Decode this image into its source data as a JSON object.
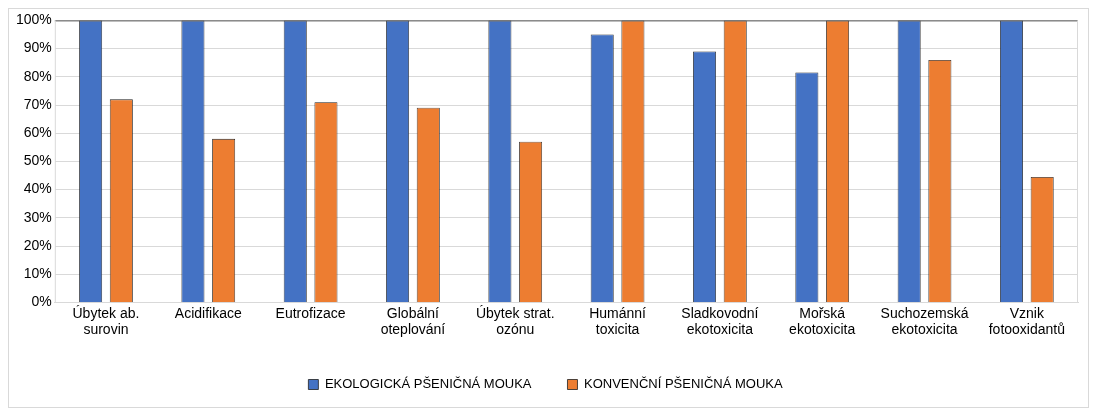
{
  "chart_data": {
    "type": "bar",
    "categories": [
      "Úbytek ab. surovin",
      "Acidifikace",
      "Eutrofizace",
      "Globální oteplování",
      "Úbytek strat. ozónu",
      "Humánní toxicita",
      "Sladkovodní ekotoxicita",
      "Mořská ekotoxicita",
      "Suchozemská ekotoxicita",
      "Vznik fotooxidantů"
    ],
    "series": [
      {
        "name": "EKOLOGICKÁ PŠENIČNÁ MOUKA",
        "color": "#4472c4",
        "values": [
          100,
          100,
          100,
          100,
          100,
          95,
          89,
          81.5,
          100,
          100
        ]
      },
      {
        "name": "KONVENČNÍ PŠENIČNÁ MOUKA",
        "color": "#ed7d31",
        "values": [
          72,
          58,
          71,
          69,
          57,
          100,
          100,
          100,
          86,
          44.5
        ]
      }
    ],
    "ylim": [
      0,
      100
    ],
    "yticks": [
      {
        "value": 0,
        "label": "0%"
      },
      {
        "value": 10,
        "label": "10%"
      },
      {
        "value": 20,
        "label": "20%"
      },
      {
        "value": 30,
        "label": "30%"
      },
      {
        "value": 40,
        "label": "40%"
      },
      {
        "value": 50,
        "label": "50%"
      },
      {
        "value": 60,
        "label": "60%"
      },
      {
        "value": 70,
        "label": "70%"
      },
      {
        "value": 80,
        "label": "80%"
      },
      {
        "value": 90,
        "label": "90%"
      },
      {
        "value": 100,
        "label": "100%"
      }
    ],
    "grid": "y",
    "legend": "bottom"
  }
}
